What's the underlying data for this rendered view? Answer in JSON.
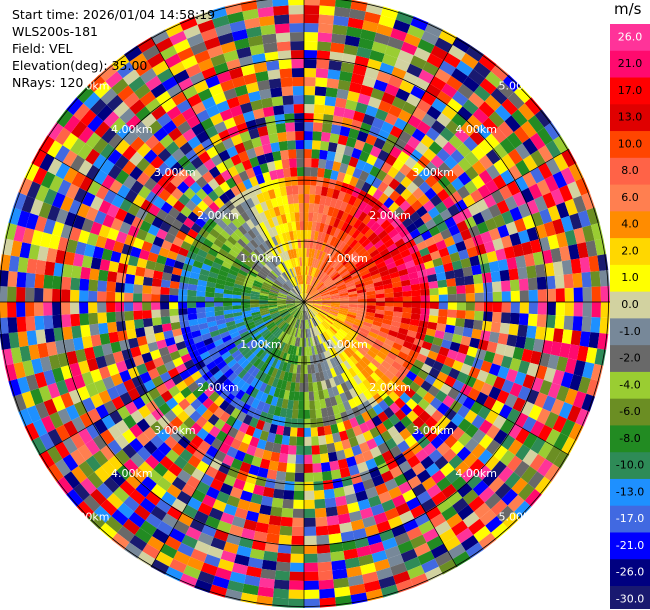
{
  "header": {
    "start_time": "Start time: 2026/01/04 14:58:19",
    "instrument": "WLS200s-181",
    "field": "Field: VEL",
    "elevation": "Elevation(deg): 35.00",
    "nrays": "NRays: 120"
  },
  "chart_data": {
    "type": "heatmap",
    "projection": "polar-ppi",
    "n_rays": 120,
    "range_rings_km": [
      "1.00km",
      "2.00km",
      "3.00km",
      "4.00km",
      "5.00km"
    ],
    "colorbar": {
      "unit": "m/s",
      "tick_labels": [
        "26.0",
        "21.0",
        "17.0",
        "13.0",
        "10.0",
        "8.0",
        "6.0",
        "4.0",
        "2.0",
        "1.0",
        "0.0",
        "-1.0",
        "-2.0",
        "-4.0",
        "-6.0",
        "-8.0",
        "-10.0",
        "-13.0",
        "-17.0",
        "-21.0",
        "-26.0",
        "-30.0"
      ],
      "colors": [
        "#ff3399",
        "#ff0a6e",
        "#ff0000",
        "#e00000",
        "#ff4500",
        "#ff6347",
        "#ff7f50",
        "#ff8c00",
        "#ffd700",
        "#ffff00",
        "#d2d2a0",
        "#778899",
        "#696969",
        "#9acd32",
        "#6b8e23",
        "#228b22",
        "#2e8b57",
        "#1e90ff",
        "#4169e1",
        "#0000ff",
        "#000080",
        "#191970"
      ]
    }
  }
}
